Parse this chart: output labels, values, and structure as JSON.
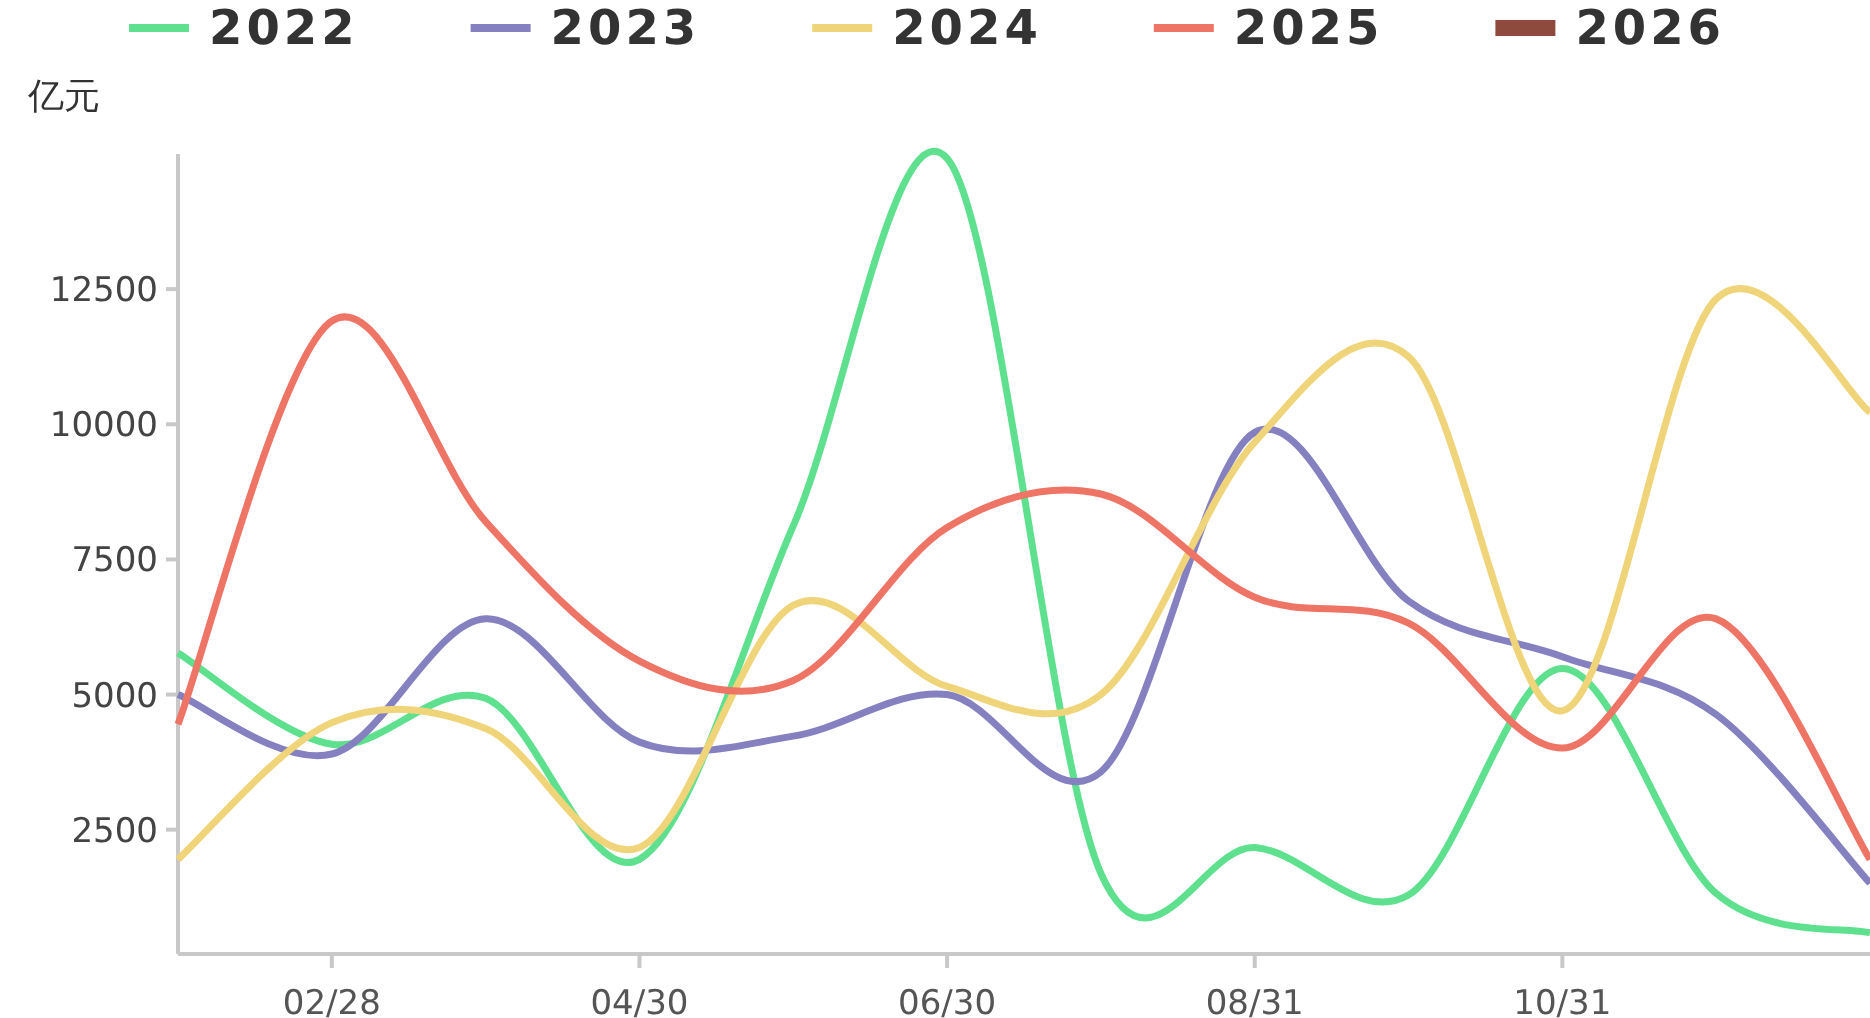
{
  "chart_data": {
    "type": "line",
    "ylabel": "亿元",
    "categories": [
      null,
      "02/28",
      null,
      "04/30",
      null,
      "06/30",
      null,
      "08/31",
      null,
      "10/31",
      null,
      null
    ],
    "ylim": [
      200,
      15000
    ],
    "yticks": [
      2500,
      5000,
      7500,
      10000,
      12500
    ],
    "grid": false,
    "legend": "top",
    "marker": "none",
    "line_style": "solid",
    "series": [
      {
        "name": "2022",
        "color": "#5ee08e",
        "values": [
          5770,
          4080,
          4930,
          1950,
          8120,
          14920,
          1690,
          2170,
          1290,
          5480,
          1320,
          590
        ]
      },
      {
        "name": "2023",
        "color": "#8580c0",
        "values": [
          5000,
          3900,
          6400,
          4120,
          4230,
          5000,
          3570,
          9850,
          6730,
          5700,
          4630,
          1510
        ]
      },
      {
        "name": "2024",
        "color": "#f0d47a",
        "values": [
          1950,
          4480,
          4370,
          2170,
          6650,
          5150,
          5000,
          9670,
          11250,
          4700,
          12320,
          10220
        ]
      },
      {
        "name": "2025",
        "color": "#ee7566",
        "values": [
          4450,
          11910,
          8200,
          5620,
          5260,
          8090,
          8710,
          6800,
          6320,
          4010,
          6400,
          1950
        ]
      },
      {
        "name": "2026",
        "color": "#8f4a3e",
        "values": [
          null,
          null,
          null,
          null,
          null,
          null,
          null,
          null,
          null,
          null,
          null,
          null
        ]
      }
    ]
  }
}
